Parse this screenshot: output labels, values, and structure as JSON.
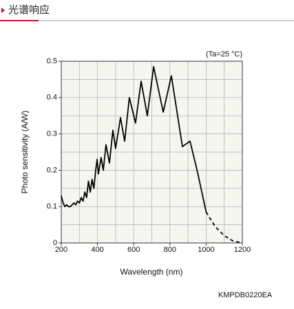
{
  "header": {
    "title": "光谱响应"
  },
  "chart_data": {
    "type": "line",
    "annotation": "(Ta=25 °C)",
    "x_label": "Wavelength (nm)",
    "y_label": "Photo sensitivity (A/W)",
    "footnote": "KMPDB0220EA",
    "xlim": [
      200,
      1200
    ],
    "ylim": [
      0,
      0.5
    ],
    "xticks": [
      200,
      400,
      600,
      800,
      1000,
      1200
    ],
    "yticks": [
      0,
      0.1,
      0.2,
      0.3,
      0.4,
      0.5
    ],
    "x_gridlines": [
      200,
      300,
      400,
      500,
      600,
      700,
      800,
      900,
      1000,
      1100,
      1200
    ],
    "y_gridlines": [
      0,
      0.05,
      0.1,
      0.15,
      0.2,
      0.25,
      0.3,
      0.35,
      0.4,
      0.45,
      0.5
    ],
    "grid": true,
    "series": [
      {
        "color": "#000000",
        "dashed": false,
        "x": [
          200,
          210,
          220,
          230,
          240,
          250,
          260,
          270,
          280,
          290,
          300,
          310,
          320,
          330,
          340,
          350,
          360,
          370,
          380,
          390,
          398,
          405,
          420,
          432,
          447,
          466,
          485,
          500,
          527,
          550,
          576,
          610,
          641,
          675,
          710,
          763,
          808,
          869,
          911,
          950,
          1000
        ],
        "values": [
          0.13,
          0.11,
          0.1,
          0.105,
          0.1,
          0.1,
          0.105,
          0.11,
          0.105,
          0.115,
          0.11,
          0.125,
          0.115,
          0.14,
          0.125,
          0.17,
          0.14,
          0.175,
          0.15,
          0.2,
          0.23,
          0.19,
          0.235,
          0.2,
          0.27,
          0.22,
          0.31,
          0.26,
          0.345,
          0.28,
          0.4,
          0.33,
          0.445,
          0.35,
          0.485,
          0.36,
          0.46,
          0.265,
          0.28,
          0.2,
          0.085
        ]
      },
      {
        "color": "#000000",
        "dashed": true,
        "x": [
          1000,
          1050,
          1100,
          1150,
          1200
        ],
        "values": [
          0.085,
          0.045,
          0.02,
          0.005,
          0
        ]
      }
    ]
  }
}
